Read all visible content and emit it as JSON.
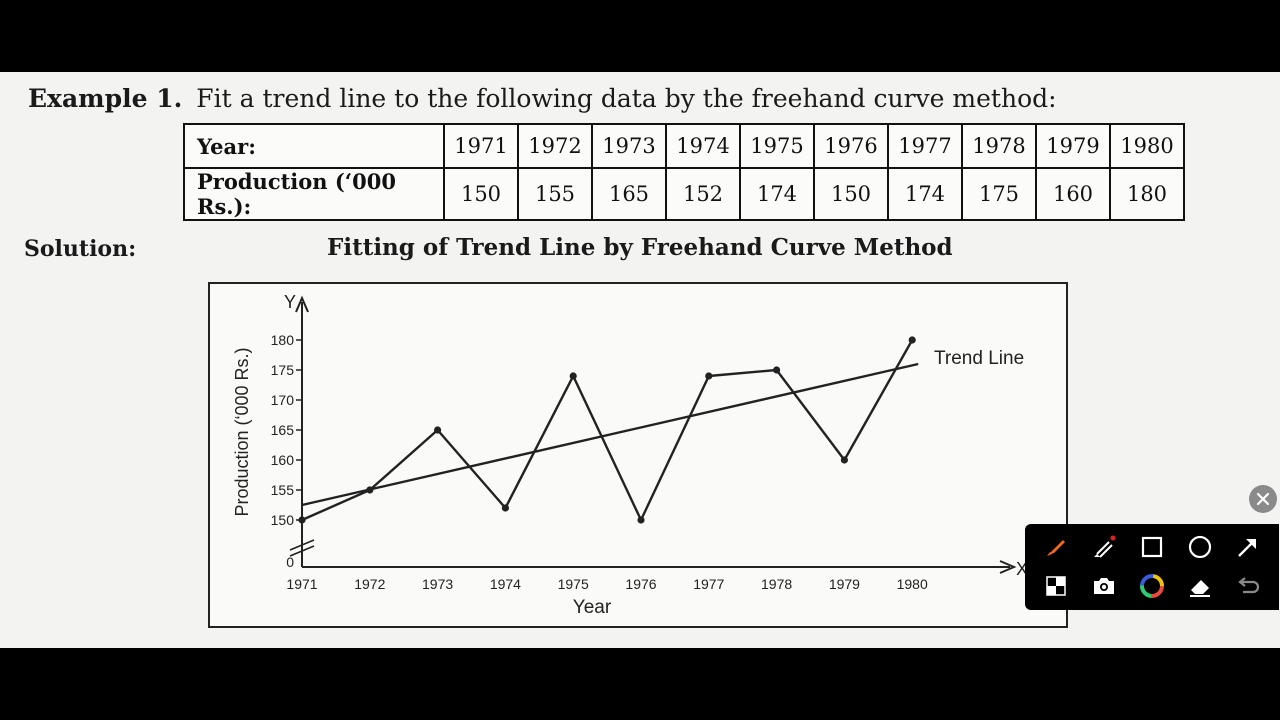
{
  "example": {
    "label": "Example 1.",
    "text": "Fit a trend line to the following data by the freehand curve method:"
  },
  "table": {
    "row1_header": "Year:",
    "row2_header": "Production (‘000 Rs.):",
    "years": [
      "1971",
      "1972",
      "1973",
      "1974",
      "1975",
      "1976",
      "1977",
      "1978",
      "1979",
      "1980"
    ],
    "production": [
      "150",
      "155",
      "165",
      "152",
      "174",
      "150",
      "174",
      "175",
      "160",
      "180"
    ]
  },
  "solution_label": "Solution:",
  "chart_data": {
    "type": "line",
    "title": "Fitting of Trend Line by Freehand Curve Method",
    "xlabel": "Year",
    "ylabel": "Production (‘000 Rs.)",
    "x_axis_letter": "X",
    "y_axis_letter": "Y",
    "categories": [
      "1971",
      "1972",
      "1973",
      "1974",
      "1975",
      "1976",
      "1977",
      "1978",
      "1979",
      "1980"
    ],
    "values": [
      150,
      155,
      165,
      152,
      174,
      150,
      174,
      175,
      160,
      180
    ],
    "yticks": [
      150,
      155,
      160,
      165,
      170,
      175,
      180
    ],
    "yticks_labels": [
      "150",
      "155",
      "160",
      "165",
      "170",
      "175",
      "180"
    ],
    "origin_label": "0",
    "ylim": [
      150,
      180
    ],
    "axis_break": true,
    "trend_line": {
      "name": "Trend Line",
      "start": [
        1971,
        152.5
      ],
      "end": [
        1980,
        176
      ]
    },
    "grid": false,
    "line_color": "#222222"
  },
  "toolbar": {
    "tools": [
      {
        "icon": "pen-icon",
        "color": "#f26a1b"
      },
      {
        "icon": "highlighter-icon",
        "color": "#ffffff"
      },
      {
        "icon": "rectangle-icon",
        "color": "#ffffff"
      },
      {
        "icon": "circle-icon",
        "color": "#ffffff"
      },
      {
        "icon": "arrow-icon",
        "color": "#ffffff"
      },
      {
        "icon": "mosaic-icon",
        "color": "#ffffff"
      },
      {
        "icon": "camera-icon",
        "color": "#ffffff"
      },
      {
        "icon": "color-wheel-icon",
        "color": "#ffffff"
      },
      {
        "icon": "eraser-icon",
        "color": "#ffffff"
      },
      {
        "icon": "undo-icon",
        "color": "#8a8a8a"
      }
    ]
  },
  "close_icon": "close-icon"
}
